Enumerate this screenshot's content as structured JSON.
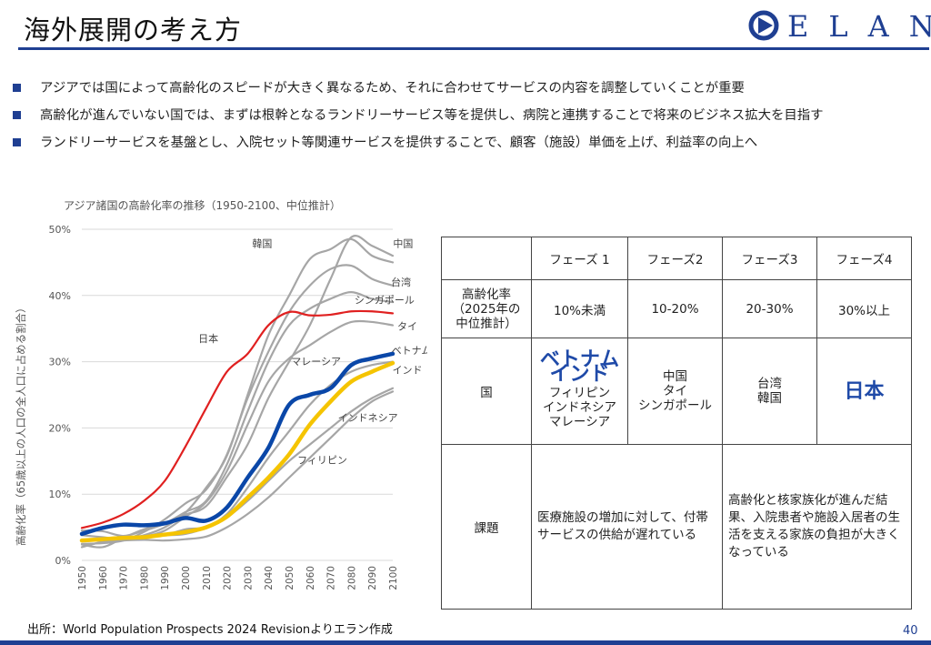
{
  "header": {
    "title": "海外展開の考え方",
    "logo_text": "ELAN"
  },
  "bullets": [
    "アジアでは国によって高齢化のスピードが大きく異なるため、それに合わせてサービスの内容を調整していくことが重要",
    "高齢化が進んでいない国では、まずは根幹となるランドリーサービス等を提供し、病院と連携することで将来のビジネス拡大を目指す",
    "ランドリーサービスを基盤とし、入院セット等関連サービスを提供することで、顧客（施設）単価を上げ、利益率の向上へ"
  ],
  "chart_data": {
    "type": "line",
    "title": "アジア諸国の高齢化率の推移（1950-2100、中位推計）",
    "ylabel": "高齢化率（65歳以上の人口の全人口に占める割合）",
    "xlabel": "",
    "ylim": [
      0,
      50
    ],
    "yticks": [
      "0%",
      "10%",
      "20%",
      "30%",
      "40%",
      "50%"
    ],
    "x": [
      1950,
      1960,
      1970,
      1980,
      1990,
      2000,
      2010,
      2020,
      2030,
      2040,
      2050,
      2060,
      2070,
      2080,
      2090,
      2100
    ],
    "grid": true,
    "series": [
      {
        "name": "日本",
        "color": "#e02020",
        "width": 2.2,
        "values": [
          4.9,
          5.7,
          7.0,
          9.0,
          12.0,
          17.2,
          23.0,
          28.5,
          31.2,
          35.5,
          37.5,
          37.0,
          37.1,
          37.6,
          37.6,
          37.3
        ]
      },
      {
        "name": "韓国",
        "color": "#a6a6a6",
        "width": 2.2,
        "values": [
          3.0,
          3.0,
          3.1,
          3.8,
          5.0,
          7.2,
          11.0,
          15.8,
          25.0,
          34.0,
          40.0,
          45.5,
          47.0,
          48.5,
          46.0,
          45.0
        ]
      },
      {
        "name": "中国",
        "color": "#a6a6a6",
        "width": 2.2,
        "values": [
          4.5,
          4.4,
          3.7,
          4.5,
          5.5,
          6.9,
          8.2,
          12.6,
          17.5,
          24.5,
          30.0,
          35.5,
          42.5,
          48.8,
          47.5,
          46.0
        ]
      },
      {
        "name": "台湾",
        "color": "#a6a6a6",
        "width": 2.2,
        "values": [
          2.5,
          2.6,
          3.0,
          4.3,
          6.2,
          8.6,
          10.7,
          16.0,
          24.5,
          31.5,
          37.5,
          41.5,
          44.0,
          44.5,
          42.5,
          41.5
        ]
      },
      {
        "name": "シンガポール",
        "color": "#a6a6a6",
        "width": 2.2,
        "values": [
          2.4,
          2.0,
          3.4,
          4.7,
          5.6,
          7.3,
          9.0,
          14.5,
          22.5,
          30.0,
          35.5,
          38.0,
          39.5,
          40.5,
          39.5,
          39.0
        ]
      },
      {
        "name": "タイ",
        "color": "#a6a6a6",
        "width": 2.2,
        "values": [
          3.0,
          3.2,
          3.4,
          3.6,
          4.5,
          6.6,
          8.8,
          13.5,
          20.5,
          27.0,
          30.5,
          32.5,
          34.5,
          36.0,
          36.0,
          35.5
        ]
      },
      {
        "name": "ベトナム",
        "color": "#0a47a8",
        "width": 4.5,
        "values": [
          4.0,
          4.9,
          5.4,
          5.3,
          5.6,
          6.4,
          6.0,
          8.0,
          12.5,
          17.0,
          23.5,
          25.0,
          26.0,
          29.5,
          30.5,
          31.2
        ]
      },
      {
        "name": "インド",
        "color": "#f5c400",
        "width": 4.5,
        "values": [
          3.0,
          3.2,
          3.4,
          3.5,
          3.9,
          4.3,
          5.0,
          6.6,
          9.5,
          12.5,
          16.0,
          20.5,
          24.0,
          27.0,
          28.5,
          29.8
        ]
      },
      {
        "name": "マレーシア",
        "color": "#a6a6a6",
        "width": 2.2,
        "values": [
          3.0,
          3.1,
          3.4,
          3.7,
          3.8,
          4.0,
          5.0,
          7.0,
          11.0,
          15.5,
          19.5,
          23.5,
          26.5,
          28.5,
          29.5,
          30.0
        ]
      },
      {
        "name": "インドネシア",
        "color": "#a6a6a6",
        "width": 2.2,
        "values": [
          3.8,
          3.5,
          3.2,
          3.5,
          3.8,
          4.7,
          5.0,
          6.5,
          9.0,
          12.0,
          15.0,
          17.5,
          20.0,
          22.5,
          24.5,
          26.0
        ]
      },
      {
        "name": "フィリピン",
        "color": "#a6a6a6",
        "width": 2.2,
        "values": [
          2.0,
          2.8,
          3.0,
          3.1,
          3.0,
          3.2,
          3.6,
          5.0,
          7.0,
          9.5,
          12.5,
          15.5,
          18.5,
          21.5,
          24.0,
          25.5
        ]
      }
    ],
    "labels": [
      {
        "text": "韓国",
        "x": 2037,
        "y": 47.3
      },
      {
        "text": "中国",
        "x": 2105,
        "y": 47.3
      },
      {
        "text": "台湾",
        "x": 2104,
        "y": 41.5
      },
      {
        "text": "シンガポール",
        "x": 2096,
        "y": 38.8
      },
      {
        "text": "タイ",
        "x": 2107,
        "y": 34.8
      },
      {
        "text": "ベトナム",
        "x": 2109,
        "y": 31.2
      },
      {
        "text": "インド",
        "x": 2107,
        "y": 28.2
      },
      {
        "text": "マレーシア",
        "x": 2063,
        "y": 29.5
      },
      {
        "text": "日本",
        "x": 2011,
        "y": 33.0
      },
      {
        "text": "インドネシア",
        "x": 2088,
        "y": 21.0
      },
      {
        "text": "フィリピン",
        "x": 2066,
        "y": 14.6
      }
    ]
  },
  "table": {
    "headers": [
      "",
      "フェーズ 1",
      "フェーズ2",
      "フェーズ3",
      "フェーズ4"
    ],
    "rate_label_lines": [
      "高齢化率",
      "（2025年の",
      "中位推計）"
    ],
    "rates": [
      "10%未満",
      "10-20%",
      "20-30%",
      "30%以上"
    ],
    "country_label": "国",
    "phase1_major": [
      "ベトナム",
      "インド"
    ],
    "phase1_minor": [
      "フィリピン",
      "インドネシア",
      "マレーシア"
    ],
    "phase2": [
      "中国",
      "タイ",
      "シンガポール"
    ],
    "phase3": [
      "台湾",
      "韓国"
    ],
    "phase4": "日本",
    "issue_label": "課題",
    "issue_left": "医療施設の増加に対して、付帯サービスの供給が遅れている",
    "issue_right": "高齢化と核家族化が進んだ結果、入院患者や施設入居者の生活を支える家族の負担が大きくなっている"
  },
  "footer": {
    "source": "出所：World Population Prospects 2024 Revisionよりエラン作成",
    "page_number": "40"
  }
}
